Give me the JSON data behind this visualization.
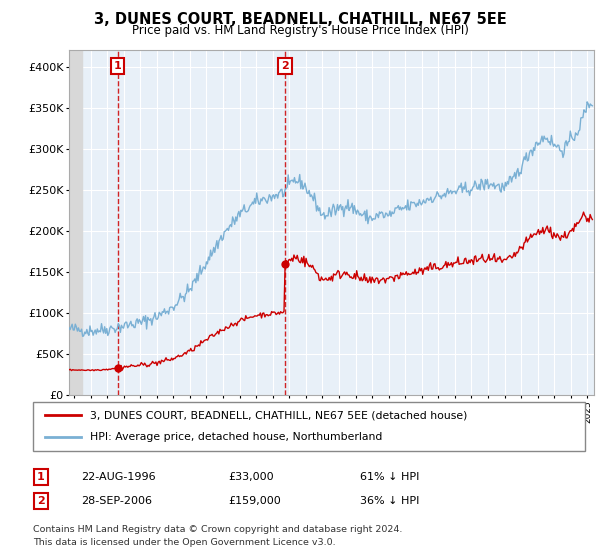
{
  "title": "3, DUNES COURT, BEADNELL, CHATHILL, NE67 5EE",
  "subtitle": "Price paid vs. HM Land Registry's House Price Index (HPI)",
  "legend_line1": "3, DUNES COURT, BEADNELL, CHATHILL, NE67 5EE (detached house)",
  "legend_line2": "HPI: Average price, detached house, Northumberland",
  "footnote1": "Contains HM Land Registry data © Crown copyright and database right 2024.",
  "footnote2": "This data is licensed under the Open Government Licence v3.0.",
  "sale1_date": "22-AUG-1996",
  "sale1_price": 33000,
  "sale1_price_str": "£33,000",
  "sale1_hpi_str": "61% ↓ HPI",
  "sale1_year": 1996.64,
  "sale2_date": "28-SEP-2006",
  "sale2_price": 159000,
  "sale2_price_str": "£159,000",
  "sale2_hpi_str": "36% ↓ HPI",
  "sale2_year": 2006.75,
  "xmin": 1993.7,
  "xmax": 2025.4,
  "ymin": 0,
  "ymax": 420000,
  "color_red": "#cc0000",
  "color_blue": "#7ab0d4",
  "color_bg": "#e8f0f8",
  "color_grid": "#ffffff",
  "hpi_anchors": [
    [
      1993.7,
      80000
    ],
    [
      1994.0,
      80000
    ],
    [
      1995.0,
      78000
    ],
    [
      1996.0,
      80000
    ],
    [
      1997.0,
      84000
    ],
    [
      1998.0,
      88000
    ],
    [
      1999.0,
      95000
    ],
    [
      2000.0,
      108000
    ],
    [
      2001.0,
      128000
    ],
    [
      2002.0,
      162000
    ],
    [
      2003.0,
      195000
    ],
    [
      2004.0,
      220000
    ],
    [
      2005.0,
      235000
    ],
    [
      2006.0,
      242000
    ],
    [
      2006.75,
      248000
    ],
    [
      2007.3,
      262000
    ],
    [
      2007.8,
      258000
    ],
    [
      2008.5,
      238000
    ],
    [
      2009.0,
      218000
    ],
    [
      2009.5,
      222000
    ],
    [
      2010.0,
      228000
    ],
    [
      2010.5,
      232000
    ],
    [
      2011.0,
      225000
    ],
    [
      2011.5,
      218000
    ],
    [
      2012.0,
      215000
    ],
    [
      2012.5,
      220000
    ],
    [
      2013.0,
      218000
    ],
    [
      2013.5,
      225000
    ],
    [
      2014.0,
      228000
    ],
    [
      2014.5,
      232000
    ],
    [
      2015.0,
      235000
    ],
    [
      2015.5,
      240000
    ],
    [
      2016.0,
      242000
    ],
    [
      2016.5,
      245000
    ],
    [
      2017.0,
      248000
    ],
    [
      2017.5,
      250000
    ],
    [
      2018.0,
      252000
    ],
    [
      2018.5,
      255000
    ],
    [
      2019.0,
      258000
    ],
    [
      2019.5,
      255000
    ],
    [
      2020.0,
      252000
    ],
    [
      2020.5,
      262000
    ],
    [
      2021.0,
      278000
    ],
    [
      2021.5,
      295000
    ],
    [
      2022.0,
      308000
    ],
    [
      2022.5,
      315000
    ],
    [
      2023.0,
      305000
    ],
    [
      2023.5,
      298000
    ],
    [
      2024.0,
      310000
    ],
    [
      2024.5,
      325000
    ],
    [
      2024.8,
      342000
    ],
    [
      2025.0,
      352000
    ],
    [
      2025.3,
      358000
    ]
  ],
  "pp_anchors_before_s1": [
    [
      1993.7,
      30000
    ],
    [
      1994.0,
      30500
    ],
    [
      1995.0,
      30000
    ],
    [
      1996.0,
      31000
    ],
    [
      1996.64,
      33000
    ]
  ],
  "pp_anchors_s1_to_s2": [
    [
      1996.64,
      33000
    ],
    [
      1997.0,
      34000
    ],
    [
      1998.0,
      36000
    ],
    [
      1999.0,
      39000
    ],
    [
      2000.0,
      44000
    ],
    [
      2001.0,
      53000
    ],
    [
      2002.0,
      67000
    ],
    [
      2003.0,
      80000
    ],
    [
      2004.0,
      90000
    ],
    [
      2005.0,
      97000
    ],
    [
      2006.0,
      99000
    ],
    [
      2006.74,
      101000
    ],
    [
      2006.75,
      159000
    ]
  ],
  "pp_anchors_after_s2": [
    [
      2006.75,
      159000
    ],
    [
      2007.3,
      168000
    ],
    [
      2007.8,
      165000
    ],
    [
      2008.5,
      153000
    ],
    [
      2009.0,
      140000
    ],
    [
      2009.5,
      143000
    ],
    [
      2010.0,
      147000
    ],
    [
      2010.5,
      149000
    ],
    [
      2011.0,
      144000
    ],
    [
      2011.5,
      140000
    ],
    [
      2012.0,
      138000
    ],
    [
      2012.5,
      141000
    ],
    [
      2013.0,
      140000
    ],
    [
      2013.5,
      145000
    ],
    [
      2014.0,
      147000
    ],
    [
      2014.5,
      149000
    ],
    [
      2015.0,
      151000
    ],
    [
      2015.5,
      154000
    ],
    [
      2016.0,
      156000
    ],
    [
      2016.5,
      158000
    ],
    [
      2017.0,
      160000
    ],
    [
      2017.5,
      162000
    ],
    [
      2018.0,
      163000
    ],
    [
      2018.5,
      165000
    ],
    [
      2019.0,
      166000
    ],
    [
      2019.5,
      164000
    ],
    [
      2020.0,
      162000
    ],
    [
      2020.5,
      168000
    ],
    [
      2021.0,
      179000
    ],
    [
      2021.5,
      190000
    ],
    [
      2022.0,
      198000
    ],
    [
      2022.5,
      202000
    ],
    [
      2023.0,
      196000
    ],
    [
      2023.5,
      191000
    ],
    [
      2024.0,
      200000
    ],
    [
      2024.5,
      209000
    ],
    [
      2024.8,
      220000
    ],
    [
      2025.0,
      210000
    ],
    [
      2025.3,
      218000
    ]
  ]
}
